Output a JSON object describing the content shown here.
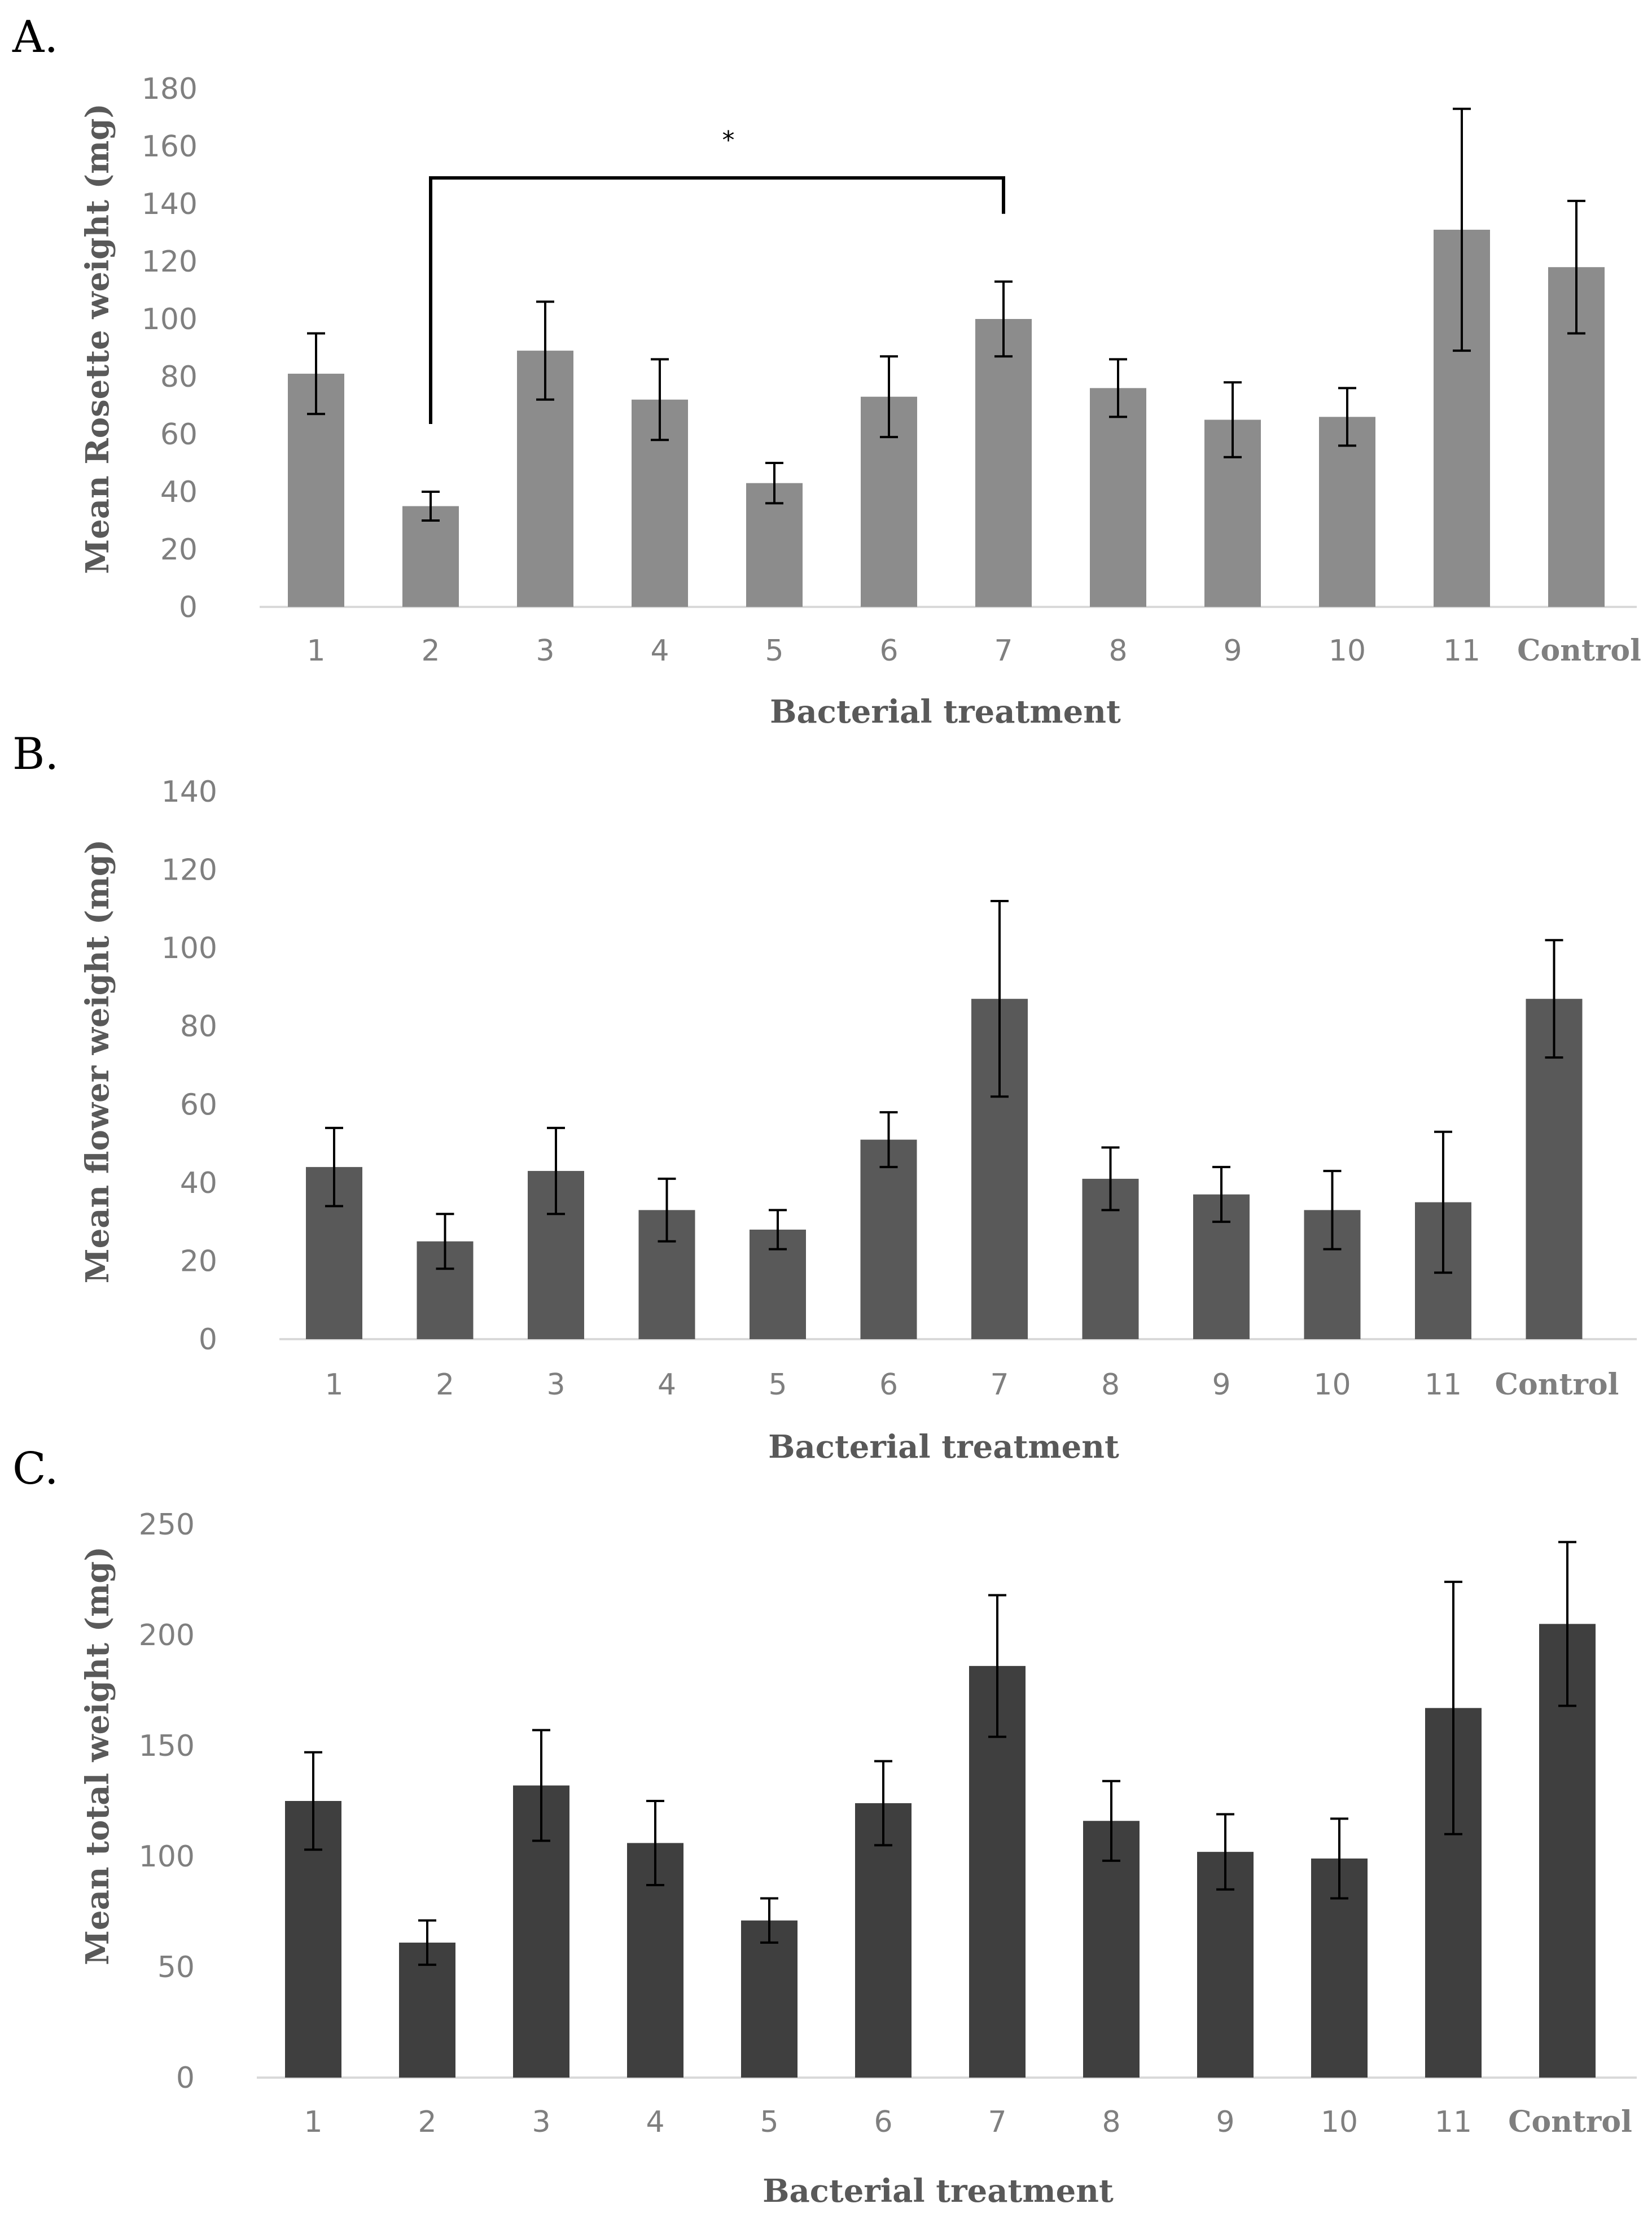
{
  "chart_data": [
    {
      "type": "bar",
      "panel_label": "A.",
      "xlabel": "Bacterial treatment",
      "ylabel": "Mean Rosette weight (mg)",
      "ylim": [
        0,
        180
      ],
      "yticks": [
        0,
        20,
        40,
        60,
        80,
        100,
        120,
        140,
        160,
        180
      ],
      "categories": [
        "1",
        "2",
        "3",
        "4",
        "5",
        "6",
        "7",
        "8",
        "9",
        "10",
        "11",
        "Control"
      ],
      "values": [
        81,
        35,
        89,
        72,
        43,
        73,
        100,
        76,
        65,
        66,
        131,
        118
      ],
      "errors": [
        14,
        5,
        17,
        14,
        7,
        14,
        13,
        10,
        13,
        10,
        42,
        23
      ],
      "bar_color": "#8c8c8c",
      "significance": {
        "from_category": "2",
        "to_category": "7",
        "label": "*",
        "level": 149
      }
    },
    {
      "type": "bar",
      "panel_label": "B.",
      "xlabel": "Bacterial treatment",
      "ylabel": "Mean flower weight (mg)",
      "ylim": [
        0,
        140
      ],
      "yticks": [
        0,
        20,
        40,
        60,
        80,
        100,
        120,
        140
      ],
      "categories": [
        "1",
        "2",
        "3",
        "4",
        "5",
        "6",
        "7",
        "8",
        "9",
        "10",
        "11",
        "Control"
      ],
      "values": [
        44,
        25,
        43,
        33,
        28,
        51,
        87,
        41,
        37,
        33,
        35,
        87
      ],
      "errors": [
        10,
        7,
        11,
        8,
        5,
        7,
        25,
        8,
        7,
        10,
        18,
        15
      ],
      "bar_color": "#595959"
    },
    {
      "type": "bar",
      "panel_label": "C.",
      "xlabel": "Bacterial treatment",
      "ylabel": "Mean total weight (mg)",
      "ylim": [
        0,
        250
      ],
      "yticks": [
        0,
        50,
        100,
        150,
        200,
        250
      ],
      "categories": [
        "1",
        "2",
        "3",
        "4",
        "5",
        "6",
        "7",
        "8",
        "9",
        "10",
        "11",
        "Control"
      ],
      "values": [
        125,
        61,
        132,
        106,
        71,
        124,
        186,
        116,
        102,
        99,
        167,
        205
      ],
      "errors": [
        22,
        10,
        25,
        19,
        10,
        19,
        32,
        18,
        17,
        18,
        57,
        37
      ],
      "bar_color": "#3f3f3f"
    }
  ]
}
